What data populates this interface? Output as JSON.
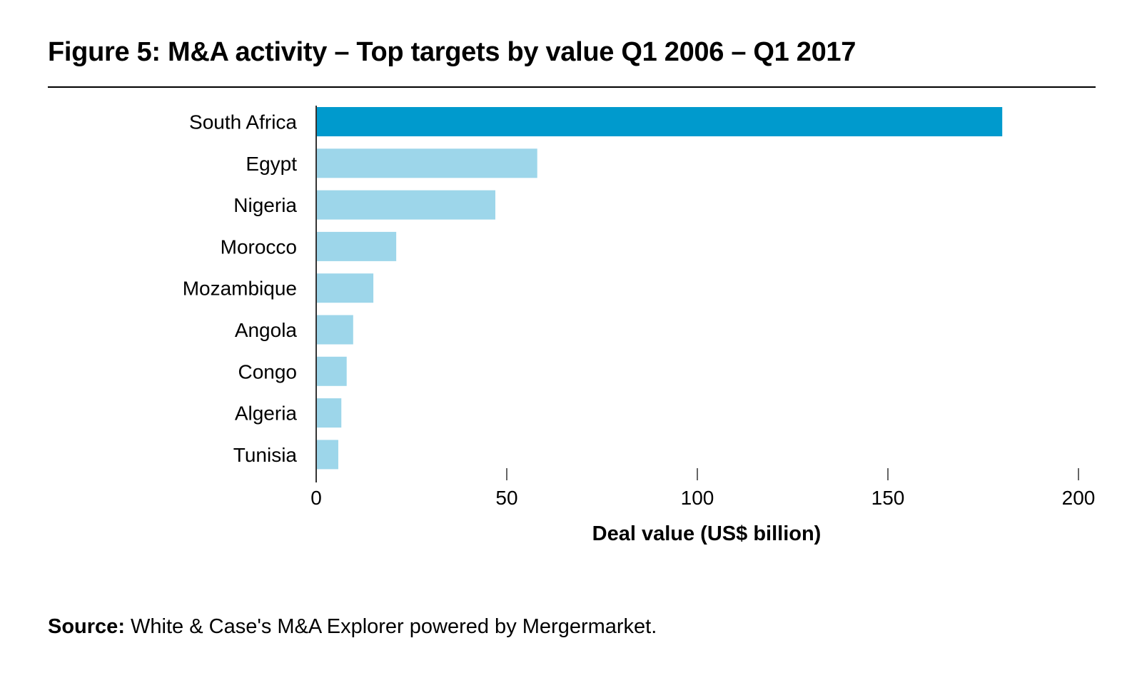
{
  "chart_data": {
    "type": "bar",
    "orientation": "horizontal",
    "title": "Figure 5: M&A activity – Top targets by value Q1 2006 – Q1 2017",
    "categories": [
      "South Africa",
      "Egypt",
      "Nigeria",
      "Morocco",
      "Mozambique",
      "Angola",
      "Congo",
      "Algeria",
      "Tunisia"
    ],
    "values": [
      180,
      58,
      47,
      21,
      15,
      9.7,
      8,
      6.6,
      5.8
    ],
    "highlight": "South Africa",
    "xlabel": "Deal value (US$ billion)",
    "ylabel": "",
    "xlim": [
      0,
      200
    ],
    "xticks": [
      "0",
      "50",
      "100",
      "150",
      "200"
    ],
    "grid": false,
    "colors": {
      "highlight": "#009ACD",
      "default": "#9DD6EA",
      "axis": "#333333"
    }
  },
  "source": {
    "label": "Source:",
    "text": " White & Case's M&A Explorer powered by Mergermarket."
  }
}
